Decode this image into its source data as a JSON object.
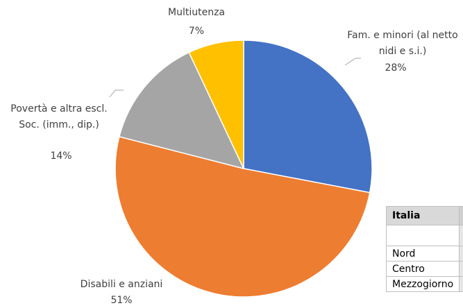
{
  "chart_data": {
    "type": "pie",
    "categories": [
      "Fam. e minori (al netto nidi e s.i.)",
      "Disabili e anziani",
      "Povertà e altra escl. Soc. (imm., dip.)",
      "Multiutenza"
    ],
    "values": [
      28,
      51,
      14,
      7
    ],
    "value_labels": [
      "28%",
      "51%",
      "14%",
      "7%"
    ],
    "colors": [
      "#4472c4",
      "#ed7d31",
      "#a5a5a5",
      "#ffc000"
    ]
  },
  "table": {
    "header": "Italia",
    "rows": [
      "Nord",
      "Centro",
      "Mezzogiorno"
    ]
  }
}
